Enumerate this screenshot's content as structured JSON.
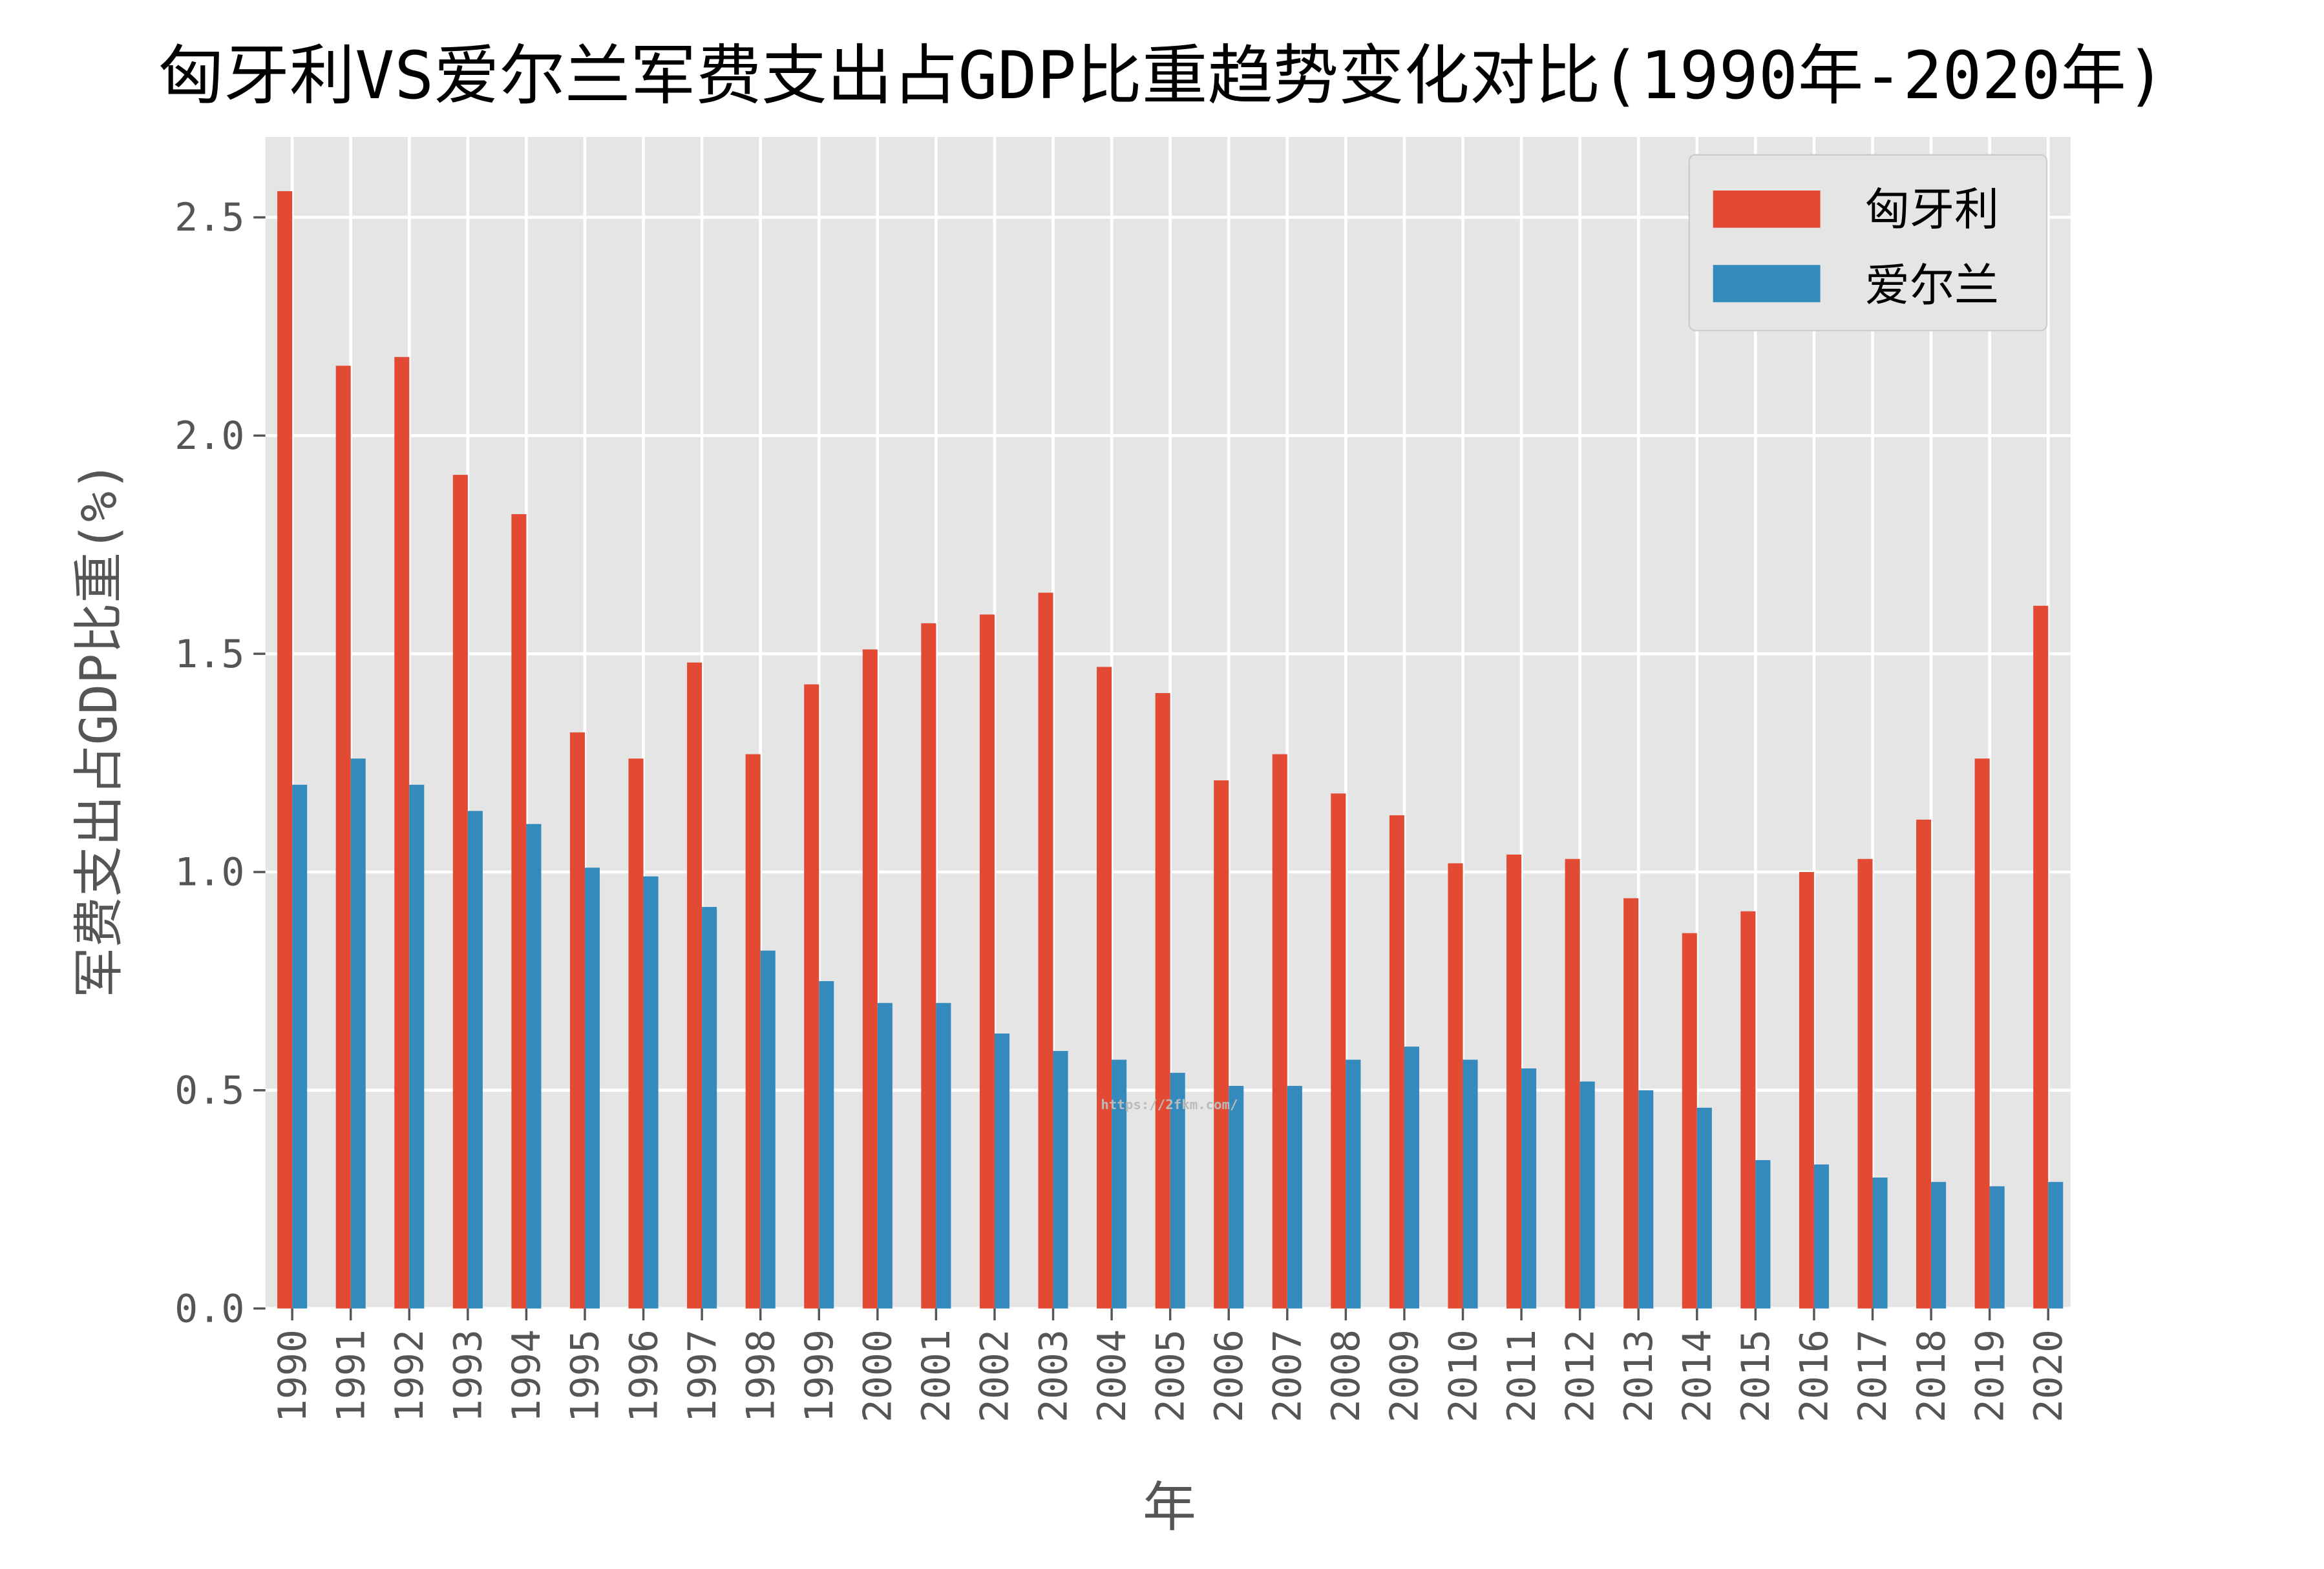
{
  "chart_data": {
    "type": "bar",
    "title": "匈牙利VS爱尔兰军费支出占GDP比重趋势变化对比(1990年-2020年)",
    "xlabel": "年",
    "ylabel": "军费支出占GDP比重(%)",
    "ylim": [
      0,
      2.68
    ],
    "yticks": [
      "0.0",
      "0.5",
      "1.0",
      "1.5",
      "2.0",
      "2.5"
    ],
    "grid": true,
    "legend_position": "top-right",
    "categories": [
      "1990",
      "1991",
      "1992",
      "1993",
      "1994",
      "1995",
      "1996",
      "1997",
      "1998",
      "1999",
      "2000",
      "2001",
      "2002",
      "2003",
      "2004",
      "2005",
      "2006",
      "2007",
      "2008",
      "2009",
      "2010",
      "2011",
      "2012",
      "2013",
      "2014",
      "2015",
      "2016",
      "2017",
      "2018",
      "2019",
      "2020"
    ],
    "series": [
      {
        "name": "匈牙利",
        "color": "#E24A33",
        "values": [
          2.56,
          2.16,
          2.18,
          1.91,
          1.82,
          1.32,
          1.26,
          1.48,
          1.27,
          1.43,
          1.51,
          1.57,
          1.59,
          1.64,
          1.47,
          1.41,
          1.21,
          1.27,
          1.18,
          1.13,
          1.02,
          1.04,
          1.03,
          0.94,
          0.86,
          0.91,
          1.0,
          1.03,
          1.12,
          1.26,
          1.61
        ]
      },
      {
        "name": "爱尔兰",
        "color": "#348ABD",
        "values": [
          1.2,
          1.26,
          1.2,
          1.14,
          1.11,
          1.01,
          0.99,
          0.92,
          0.82,
          0.75,
          0.7,
          0.7,
          0.63,
          0.59,
          0.57,
          0.54,
          0.51,
          0.51,
          0.57,
          0.6,
          0.57,
          0.55,
          0.52,
          0.5,
          0.46,
          0.34,
          0.33,
          0.3,
          0.29,
          0.28,
          0.29
        ]
      }
    ],
    "watermark": "https://2fkm.com/"
  }
}
